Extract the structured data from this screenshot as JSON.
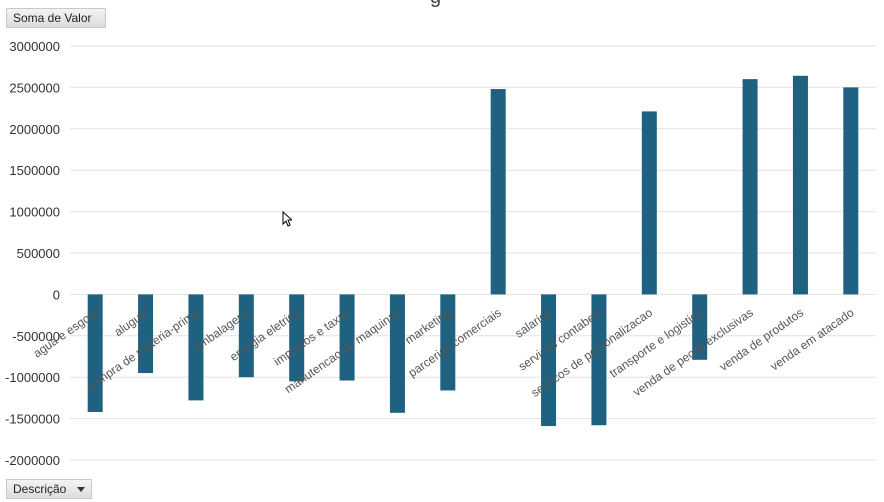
{
  "fields": {
    "value_field": "Soma de Valor",
    "category_field": "Descrição"
  },
  "colors": {
    "bar": "#1e6180",
    "grid": "#e2e2e2"
  },
  "chart_data": {
    "type": "bar",
    "title": "",
    "xlabel": "",
    "ylabel": "",
    "ylim": [
      -2000000,
      3000000
    ],
    "yticks": [
      3000000,
      2500000,
      2000000,
      1500000,
      1000000,
      500000,
      0,
      -500000,
      -1000000,
      -1500000,
      -2000000
    ],
    "grid": true,
    "categories": [
      "agua e esgoto",
      "aluguel",
      "compra de materia-prima",
      "embalagens",
      "energia eletrica",
      "impostos e taxas",
      "manutencao de maquinas",
      "marketing",
      "parcerias comerciais",
      "salarios",
      "servicos contabeis",
      "servicos de personalizacao",
      "transporte e logistica",
      "venda de pecas exclusivas",
      "venda de produtos",
      "venda em atacado"
    ],
    "values": [
      -1420000,
      -950000,
      -1280000,
      -1000000,
      -1050000,
      -1040000,
      -1430000,
      -1160000,
      2480000,
      -1590000,
      -1580000,
      2210000,
      -790000,
      2600000,
      2640000,
      2500000
    ]
  }
}
